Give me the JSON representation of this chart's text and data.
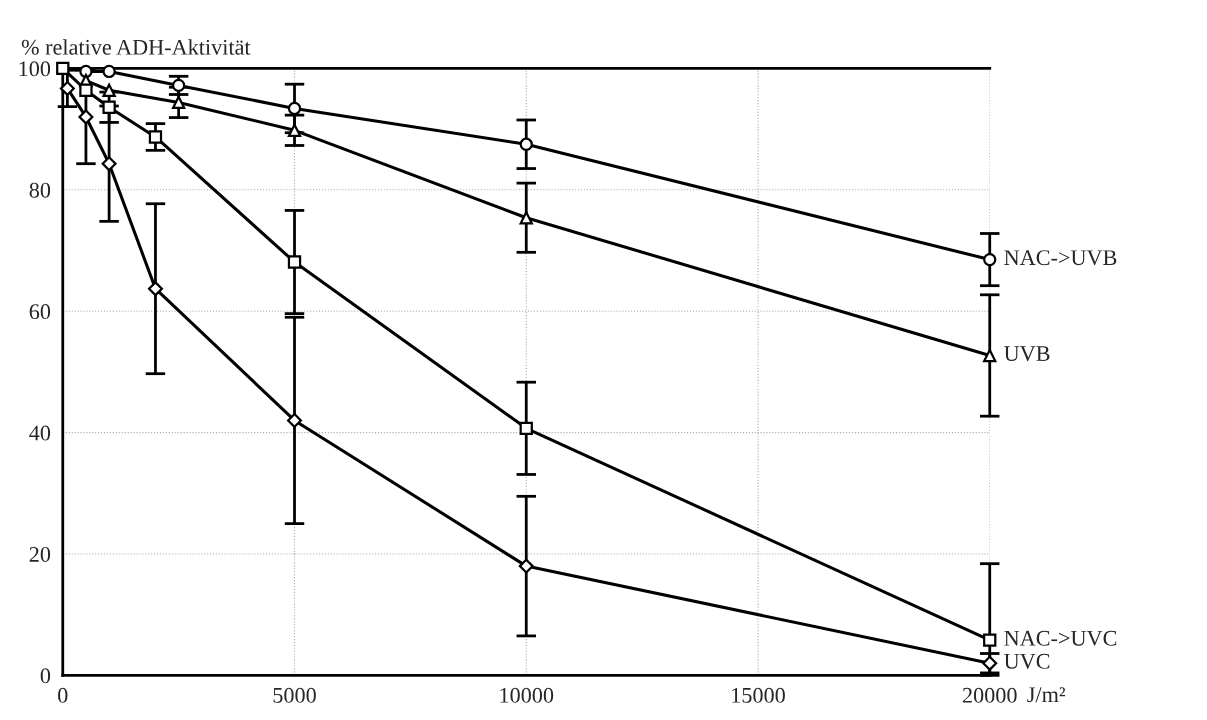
{
  "chart_data": {
    "type": "line",
    "ylabel": "% relative ADH-Aktivität",
    "xlabel": "J/m²",
    "xlim": [
      0,
      20000
    ],
    "xticks": [
      0,
      5000,
      10000,
      15000,
      20000
    ],
    "ylim": [
      0,
      100
    ],
    "yticks": [
      0,
      20,
      40,
      60,
      80,
      100
    ],
    "grid": true,
    "line_style": "solid",
    "series": [
      {
        "name": "NAC->UVB",
        "color": "#000000",
        "marker": "circle",
        "x": [
          500,
          1000,
          2500,
          5000,
          10000,
          20000
        ],
        "values": [
          99.5,
          99.5,
          97.2,
          93.4,
          87.5,
          68.5
        ],
        "errors": [
          null,
          null,
          1.5,
          4,
          4,
          4.3
        ]
      },
      {
        "name": "UVB",
        "color": "#000000",
        "marker": "triangle",
        "x": [
          500,
          1000,
          2500,
          5000,
          10000,
          20000
        ],
        "values": [
          98,
          96.4,
          94.4,
          89.8,
          75.4,
          52.7
        ],
        "errors": [
          null,
          null,
          2.5,
          2.5,
          5.7,
          10
        ]
      },
      {
        "name": "NAC->UVC",
        "color": "#000000",
        "marker": "square",
        "x": [
          0,
          500,
          1000,
          2000,
          5000,
          10000,
          20000
        ],
        "values": [
          100,
          96.4,
          93.6,
          88.7,
          68.1,
          40.7,
          5.8
        ],
        "errors": [
          null,
          null,
          2.5,
          2.2,
          8.5,
          7.6,
          [
            0,
            18.4
          ]
        ]
      },
      {
        "name": "UVC",
        "color": "#000000",
        "marker": "diamond",
        "x": [
          100,
          500,
          1000,
          2000,
          5000,
          10000,
          20000
        ],
        "values": [
          96.7,
          92,
          84.3,
          63.7,
          42,
          18,
          2
        ],
        "errors": [
          3,
          7.7,
          9.5,
          14,
          17,
          11.5,
          1.6
        ]
      }
    ]
  }
}
